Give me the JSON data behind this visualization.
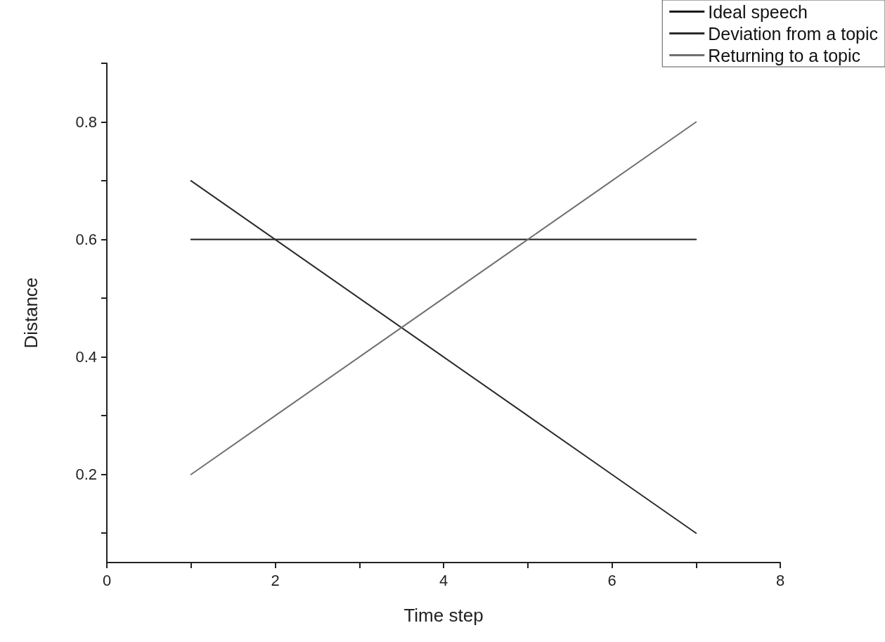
{
  "chart_data": {
    "type": "line",
    "xlabel": "Time step",
    "ylabel": "Distance",
    "x": [
      1,
      2,
      3,
      4,
      5,
      6,
      7
    ],
    "series": [
      {
        "name": "Ideal speech",
        "color": "#1a1a1a",
        "values": [
          0.6,
          0.6,
          0.6,
          0.6,
          0.6,
          0.6,
          0.6
        ]
      },
      {
        "name": "Deviation from a topic",
        "color": "#2b2b2b",
        "values": [
          0.7,
          0.6,
          0.5,
          0.4,
          0.3,
          0.2,
          0.1
        ]
      },
      {
        "name": "Returning to a topic",
        "color": "#707070",
        "values": [
          0.2,
          0.3,
          0.4,
          0.5,
          0.6,
          0.7,
          0.8
        ]
      }
    ],
    "xlim": [
      0,
      8
    ],
    "xticks": [
      0,
      {
        "value": 1,
        "label": null
      },
      2,
      {
        "value": 3,
        "label": null
      },
      4,
      {
        "value": 5,
        "label": null
      },
      6,
      {
        "value": 7,
        "label": null
      },
      8
    ],
    "ylim": [
      0.05,
      0.9
    ],
    "yticks": [
      {
        "value": 0.1,
        "label": null
      },
      0.2,
      {
        "value": 0.3,
        "label": null
      },
      0.4,
      {
        "value": 0.5,
        "label": null
      },
      0.6,
      {
        "value": 0.7,
        "label": null
      },
      0.8,
      {
        "value": 0.9,
        "label": null
      }
    ],
    "grid": false,
    "legend": "top right",
    "marker": "none",
    "line_style": "solid"
  }
}
